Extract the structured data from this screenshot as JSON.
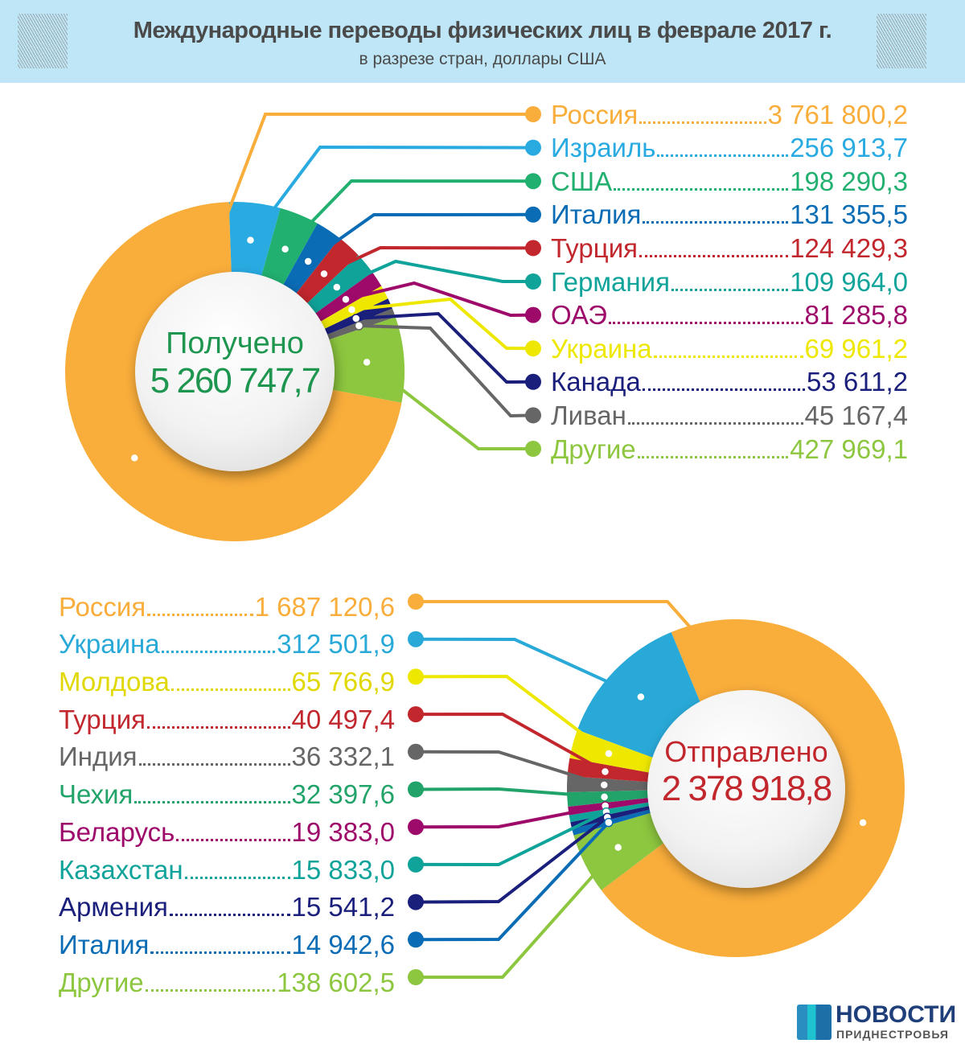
{
  "header": {
    "title": "Международные переводы физических лиц в феврале 2017 г.",
    "subtitle": "в разрезе стран, доллары США"
  },
  "chart_data": [
    {
      "type": "pie",
      "title": "Получено",
      "total_label": "5 260 747,7",
      "total": 5260747.7,
      "categories": [
        "Россия",
        "Израиль",
        "США",
        "Италия",
        "Турция",
        "Германия",
        "ОАЭ",
        "Украина",
        "Канада",
        "Ливан",
        "Другие"
      ],
      "values": [
        3761800.2,
        256913.7,
        198290.3,
        131355.5,
        124429.3,
        109964.0,
        81285.8,
        69961.2,
        53611.2,
        45167.4,
        427969.1
      ],
      "value_labels": [
        "3 761 800,2",
        "256 913,7",
        "198 290,3",
        "131 355,5",
        "124 429,3",
        "109 964,0",
        "81 285,8",
        "69 961,2",
        "53 611,2",
        "45 167,4",
        "427 969,1"
      ],
      "colors": [
        "#f9ad3b",
        "#29abe2",
        "#22b070",
        "#0a6cb5",
        "#c1272d",
        "#0fa39a",
        "#9e0a6a",
        "#eee800",
        "#1b1f7c",
        "#666666",
        "#8dc63f"
      ]
    },
    {
      "type": "pie",
      "title": "Отправлено",
      "total_label": "2 378 918,8",
      "total": 2378918.8,
      "categories": [
        "Россия",
        "Украина",
        "Молдова",
        "Турция",
        "Индия",
        "Чехия",
        "Беларусь",
        "Казахстан",
        "Армения",
        "Италия",
        "Другие"
      ],
      "values": [
        1687120.6,
        312501.9,
        65766.9,
        40497.4,
        36332.1,
        32397.6,
        19383.0,
        15833.0,
        15541.2,
        14942.6,
        138602.5
      ],
      "value_labels": [
        "1 687 120,6",
        "312 501,9",
        "65 766,9",
        "40 497,4",
        "36 332,1",
        "32 397,6",
        "19 383,0",
        "15 833,0",
        "15 541,2",
        "14 942,6",
        "138 602,5"
      ],
      "colors": [
        "#f9ad3b",
        "#29a9d8",
        "#eee800",
        "#c1272d",
        "#666666",
        "#22a36a",
        "#9e0a6a",
        "#0fa39a",
        "#1b1f7c",
        "#0a6cb5",
        "#8dc63f"
      ],
      "text_colors": [
        "#f9ad3b",
        "#29a9d8",
        "#e0d800",
        "#c1272d",
        "#666666",
        "#22a36a",
        "#9e0a6a",
        "#0fa39a",
        "#1b1f7c",
        "#0a6cb5",
        "#8dc63f"
      ]
    }
  ],
  "center_colors": {
    "received": "#1e9650",
    "sent": "#c1272d"
  },
  "logo": {
    "line1": "НОВОСТИ",
    "line2": "ПРИДНЕСТРОВЬЯ"
  }
}
